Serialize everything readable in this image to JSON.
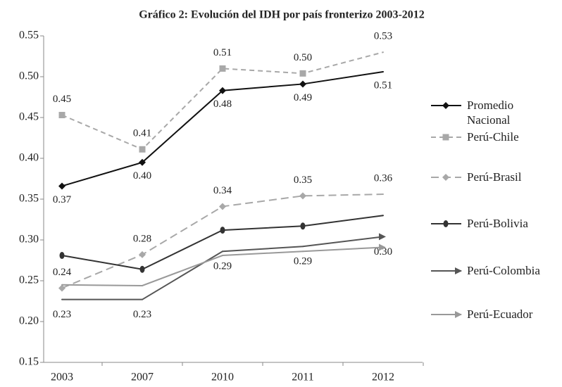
{
  "chart_data": {
    "type": "line",
    "title": "Gráfico 2: Evolución del IDH por país fronterizo 2003-2012",
    "categories": [
      "2003",
      "2007",
      "2010",
      "2011",
      "2012"
    ],
    "ylim": [
      0.15,
      0.55
    ],
    "yticks": [
      0.15,
      {
        "value": 0.2,
        "label": "0.20"
      },
      0.25,
      {
        "value": 0.3,
        "label": "0.30"
      },
      0.35,
      {
        "value": 0.4,
        "label": "0.40"
      },
      0.45,
      {
        "value": 0.5,
        "label": "0.50"
      },
      0.55
    ],
    "series": [
      {
        "name": "Promedio Nacional",
        "color": "#111111",
        "marker": "diamond",
        "dash": "solid",
        "values": [
          0.366,
          0.395,
          0.483,
          0.491,
          0.506
        ],
        "value_labels": [
          "0.37",
          "0.40",
          "0.48",
          "0.49",
          "0.51"
        ]
      },
      {
        "name": "Perú-Chile",
        "color": "#a8a8a8",
        "marker": "square",
        "dash": "dashed",
        "values": [
          0.453,
          0.411,
          0.51,
          0.504,
          0.53
        ],
        "value_labels": [
          "0.45",
          "0.41",
          "0.51",
          "0.50",
          "0.53"
        ]
      },
      {
        "name": "Perú-Brasil",
        "color": "#a8a8a8",
        "marker": "diamond",
        "dash": "longdash",
        "values": [
          0.241,
          0.282,
          0.341,
          0.354,
          0.356
        ],
        "value_labels": [
          "0.24",
          "0.28",
          "0.34",
          "0.35",
          "0.36"
        ]
      },
      {
        "name": "Perú-Bolivia",
        "color": "#333333",
        "marker": "circle",
        "dash": "solid",
        "values": [
          0.281,
          0.264,
          0.312,
          0.317,
          0.33
        ]
      },
      {
        "name": "Perú-Colombia",
        "color": "#555555",
        "marker": "arrow",
        "dash": "solid",
        "values": [
          0.227,
          0.227,
          0.286,
          0.292,
          0.304
        ],
        "value_labels": [
          "0.23",
          "0.23",
          "0.29",
          "0.29",
          "0.30"
        ]
      },
      {
        "name": "Perú-Ecuador",
        "color": "#999999",
        "marker": "arrow",
        "dash": "solid",
        "values": [
          0.245,
          0.244,
          0.281,
          0.286,
          0.291
        ]
      }
    ]
  }
}
